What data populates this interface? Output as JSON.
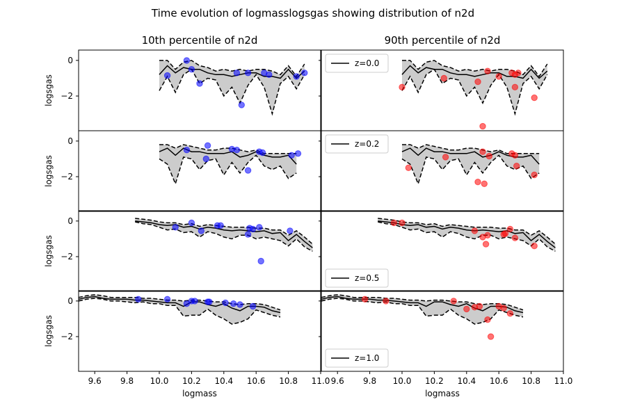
{
  "figure": {
    "title": "Time evolution of logmasslogsgas showing distribution of n2d"
  },
  "chart_data": {
    "type": "line",
    "title": "Time evolution of logmasslogsgas showing distribution of n2d",
    "xlabel": "logmass",
    "ylabel": "logsgas",
    "xlim": [
      9.5,
      11.0
    ],
    "ylim": [
      -3.95,
      0.58
    ],
    "xticks": [
      9.6,
      9.8,
      10.0,
      10.2,
      10.4,
      10.6,
      10.8,
      11.0
    ],
    "xtick_labels": [
      "9.6",
      "9.8",
      "10.0",
      "10.2",
      "10.4",
      "10.6",
      "10.8",
      "11.0"
    ],
    "yticks": [
      0,
      -2
    ],
    "ytick_labels": [
      "0",
      "−2"
    ],
    "grid": false,
    "legend_position": [
      "upper left",
      "upper left",
      "lower left",
      "lower left"
    ],
    "column_titles": [
      "10th percentile of n2d",
      "90th percentile of n2d"
    ],
    "column_colors": [
      "#0000ff",
      "#ff0000"
    ],
    "band_color": "#cccccc",
    "panels": [
      {
        "z_label": "z=0.0",
        "x": [
          10.0,
          10.05,
          10.1,
          10.15,
          10.2,
          10.25,
          10.3,
          10.35,
          10.4,
          10.45,
          10.5,
          10.55,
          10.6,
          10.65,
          10.7,
          10.75,
          10.8,
          10.85,
          10.9
        ],
        "median": [
          -0.8,
          -0.3,
          -0.7,
          -0.4,
          -0.5,
          -0.5,
          -0.7,
          -0.8,
          -0.8,
          -0.9,
          -0.8,
          -0.7,
          -0.7,
          -0.9,
          -0.9,
          -1.0,
          -0.5,
          -1.0,
          -0.6
        ],
        "upper": [
          0.0,
          0.0,
          -0.5,
          -0.1,
          0.0,
          -0.3,
          -0.4,
          -0.6,
          -0.5,
          -0.6,
          -0.5,
          -0.6,
          -0.5,
          -0.5,
          -0.6,
          -0.8,
          -0.3,
          -0.9,
          -0.2
        ],
        "lower": [
          -1.7,
          -0.9,
          -1.8,
          -0.8,
          -0.5,
          -1.3,
          -1.0,
          -1.1,
          -2.0,
          -1.5,
          -2.4,
          -1.4,
          -0.8,
          -1.5,
          -3.0,
          -1.3,
          -0.9,
          -1.6,
          -0.8
        ],
        "scatter": [
          [
            [
              10.05,
              -0.85
            ],
            [
              10.17,
              0.0
            ],
            [
              10.2,
              -0.5
            ],
            [
              10.25,
              -1.3
            ],
            [
              10.48,
              -0.7
            ],
            [
              10.51,
              -2.5
            ],
            [
              10.55,
              -0.7
            ],
            [
              10.65,
              -0.7
            ],
            [
              10.68,
              -0.8
            ],
            [
              10.85,
              -0.9
            ],
            [
              10.9,
              -0.7
            ]
          ],
          [
            [
              10.0,
              -1.5
            ],
            [
              10.26,
              -1.0
            ],
            [
              10.47,
              -1.2
            ],
            [
              10.5,
              -3.7
            ],
            [
              10.53,
              -0.6
            ],
            [
              10.6,
              -0.9
            ],
            [
              10.68,
              -0.7
            ],
            [
              10.7,
              -0.8
            ],
            [
              10.7,
              -1.5
            ],
            [
              10.72,
              -0.7
            ],
            [
              10.82,
              -2.1
            ]
          ]
        ]
      },
      {
        "z_label": "z=0.2",
        "x": [
          10.0,
          10.05,
          10.1,
          10.15,
          10.2,
          10.25,
          10.3,
          10.35,
          10.4,
          10.45,
          10.5,
          10.55,
          10.6,
          10.65,
          10.7,
          10.75,
          10.8,
          10.85
        ],
        "median": [
          -0.6,
          -0.4,
          -0.8,
          -0.4,
          -0.6,
          -0.6,
          -0.7,
          -0.7,
          -0.7,
          -0.6,
          -0.9,
          -0.8,
          -0.6,
          -0.8,
          -0.9,
          -0.9,
          -0.8,
          -1.3
        ],
        "upper": [
          -0.2,
          -0.2,
          -0.4,
          -0.2,
          -0.3,
          -0.4,
          -0.5,
          -0.5,
          -0.4,
          -0.4,
          -0.5,
          -0.6,
          -0.5,
          -0.7,
          -0.7,
          -0.7,
          -0.7,
          -0.7
        ],
        "lower": [
          -1.0,
          -1.3,
          -2.4,
          -0.9,
          -1.0,
          -1.6,
          -1.1,
          -1.0,
          -1.9,
          -1.2,
          -1.8,
          -1.2,
          -0.8,
          -1.4,
          -1.6,
          -1.4,
          -2.1,
          -1.8
        ],
        "scatter": [
          [
            [
              10.17,
              -0.5
            ],
            [
              10.29,
              -1.0
            ],
            [
              10.3,
              -0.25
            ],
            [
              10.45,
              -0.45
            ],
            [
              10.48,
              -0.5
            ],
            [
              10.55,
              -1.65
            ],
            [
              10.62,
              -0.6
            ],
            [
              10.64,
              -0.65
            ],
            [
              10.82,
              -0.8
            ],
            [
              10.86,
              -0.7
            ]
          ],
          [
            [
              10.04,
              -1.5
            ],
            [
              10.27,
              -0.9
            ],
            [
              10.47,
              -2.3
            ],
            [
              10.5,
              -0.6
            ],
            [
              10.51,
              -2.4
            ],
            [
              10.54,
              -0.85
            ],
            [
              10.68,
              -0.7
            ],
            [
              10.7,
              -0.8
            ],
            [
              10.71,
              -1.4
            ],
            [
              10.82,
              -1.9
            ]
          ]
        ]
      },
      {
        "z_label": "z=0.5",
        "x": [
          9.85,
          9.9,
          9.95,
          10.0,
          10.05,
          10.1,
          10.15,
          10.2,
          10.25,
          10.3,
          10.35,
          10.4,
          10.45,
          10.5,
          10.55,
          10.6,
          10.65,
          10.7,
          10.75,
          10.8,
          10.85,
          10.9,
          10.95
        ],
        "median": [
          0.0,
          -0.05,
          -0.1,
          -0.2,
          -0.25,
          -0.2,
          -0.35,
          -0.3,
          -0.45,
          -0.35,
          -0.4,
          -0.5,
          -0.55,
          -0.5,
          -0.55,
          -0.6,
          -0.55,
          -0.7,
          -0.65,
          -1.1,
          -0.75,
          -1.15,
          -1.5
        ],
        "upper": [
          0.15,
          0.1,
          0.05,
          -0.05,
          -0.1,
          -0.1,
          -0.2,
          -0.15,
          -0.3,
          -0.2,
          -0.25,
          -0.3,
          -0.35,
          -0.35,
          -0.35,
          -0.4,
          -0.4,
          -0.5,
          -0.5,
          -0.8,
          -0.55,
          -0.9,
          -1.3
        ],
        "lower": [
          -0.05,
          -0.15,
          -0.2,
          -0.35,
          -0.5,
          -0.45,
          -0.65,
          -0.6,
          -0.9,
          -0.6,
          -0.7,
          -0.9,
          -1.0,
          -0.8,
          -0.8,
          -1.0,
          -0.9,
          -1.0,
          -1.1,
          -1.4,
          -1.0,
          -1.45,
          -1.7
        ],
        "scatter": [
          [
            [
              10.1,
              -0.35
            ],
            [
              10.2,
              -0.1
            ],
            [
              10.26,
              -0.55
            ],
            [
              10.36,
              -0.25
            ],
            [
              10.38,
              -0.25
            ],
            [
              10.55,
              -0.75
            ],
            [
              10.56,
              -0.4
            ],
            [
              10.58,
              -0.45
            ],
            [
              10.62,
              -0.35
            ],
            [
              10.63,
              -2.25
            ],
            [
              10.81,
              -0.55
            ]
          ],
          [
            [
              9.95,
              -0.1
            ],
            [
              10.0,
              -0.1
            ],
            [
              10.45,
              -0.55
            ],
            [
              10.5,
              -0.9
            ],
            [
              10.52,
              -1.3
            ],
            [
              10.53,
              -0.8
            ],
            [
              10.63,
              -0.75
            ],
            [
              10.64,
              -0.7
            ],
            [
              10.67,
              -0.45
            ],
            [
              10.7,
              -0.95
            ],
            [
              10.82,
              -1.4
            ]
          ]
        ]
      },
      {
        "z_label": "z=1.0",
        "x": [
          9.5,
          9.55,
          9.6,
          9.65,
          9.7,
          9.75,
          9.8,
          9.85,
          9.9,
          9.95,
          10.0,
          10.05,
          10.1,
          10.15,
          10.2,
          10.25,
          10.3,
          10.35,
          10.4,
          10.45,
          10.5,
          10.55,
          10.6,
          10.65,
          10.7,
          10.75
        ],
        "median": [
          0.1,
          0.2,
          0.25,
          0.15,
          0.1,
          0.1,
          0.1,
          0.05,
          0.05,
          0.0,
          -0.05,
          -0.1,
          -0.1,
          -0.3,
          -0.05,
          -0.05,
          -0.2,
          -0.3,
          -0.15,
          -0.4,
          -0.55,
          -0.3,
          -0.3,
          -0.35,
          -0.55,
          -0.65
        ],
        "upper": [
          0.2,
          0.3,
          0.35,
          0.3,
          0.2,
          0.2,
          0.2,
          0.2,
          0.15,
          0.15,
          0.1,
          0.05,
          0.05,
          0.0,
          0.05,
          0.05,
          0.0,
          -0.05,
          -0.05,
          -0.15,
          -0.2,
          -0.15,
          -0.15,
          -0.2,
          -0.35,
          -0.5
        ],
        "lower": [
          0.0,
          0.1,
          0.15,
          0.1,
          0.0,
          0.0,
          -0.05,
          -0.1,
          -0.05,
          -0.15,
          -0.15,
          -0.25,
          -0.25,
          -0.85,
          -0.8,
          -0.8,
          -0.45,
          -0.8,
          -1.0,
          -1.3,
          -1.2,
          -1.0,
          -0.5,
          -0.65,
          -0.8,
          -0.9
        ],
        "scatter": [
          [
            [
              9.87,
              0.1
            ],
            [
              10.05,
              0.1
            ],
            [
              10.17,
              -0.15
            ],
            [
              10.2,
              0.0
            ],
            [
              10.22,
              0.0
            ],
            [
              10.3,
              -0.05
            ],
            [
              10.31,
              -0.05
            ],
            [
              10.41,
              -0.1
            ],
            [
              10.46,
              -0.15
            ],
            [
              10.5,
              -0.2
            ],
            [
              10.58,
              -0.3
            ]
          ],
          [
            [
              9.77,
              0.1
            ],
            [
              9.9,
              0.0
            ],
            [
              10.32,
              0.0
            ],
            [
              10.4,
              -0.45
            ],
            [
              10.45,
              -0.35
            ],
            [
              10.48,
              -0.3
            ],
            [
              10.53,
              -1.05
            ],
            [
              10.55,
              -2.0
            ],
            [
              10.6,
              -0.3
            ],
            [
              10.63,
              -0.4
            ],
            [
              10.67,
              -0.7
            ]
          ]
        ]
      }
    ]
  }
}
